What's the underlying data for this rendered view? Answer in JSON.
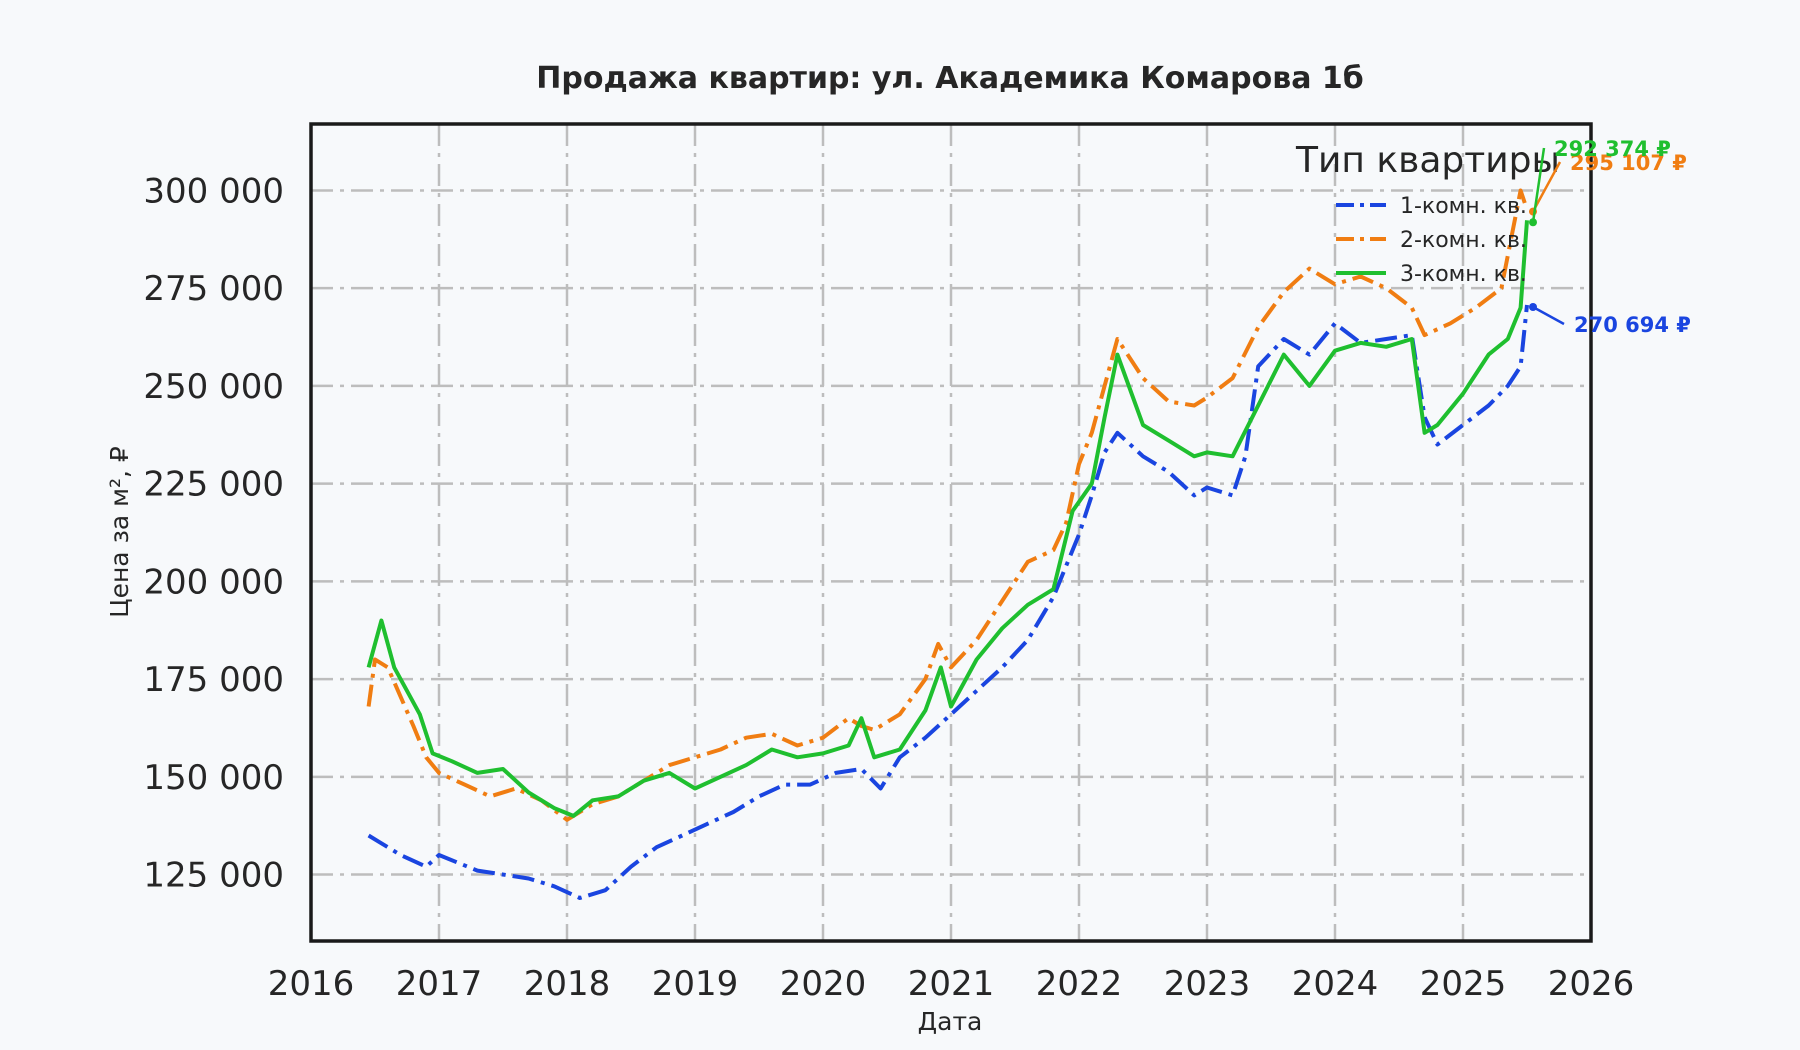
{
  "chart_data": {
    "type": "line",
    "title": "Продажа квартир: ул. Академика Комарова 1б",
    "xlabel": "Дата",
    "ylabel": "Цена за м², ₽",
    "xlim": [
      2016.0,
      2026.0
    ],
    "ylim": [
      108000,
      317000
    ],
    "x_ticks": [
      "2016",
      "2017",
      "2018",
      "2019",
      "2020",
      "2021",
      "2022",
      "2023",
      "2024",
      "2025",
      "2026"
    ],
    "y_ticks": [
      "125 000",
      "150 000",
      "175 000",
      "200 000",
      "225 000",
      "250 000",
      "275 000",
      "300 000"
    ],
    "grid": true,
    "legend": {
      "title": "Тип квартиры",
      "placement": "top-right"
    },
    "series": [
      {
        "name": "1-комн. кв.",
        "color": "#1a45e0",
        "dash": "dashdot",
        "end_label": "270 694 ₽",
        "x": [
          2016.45,
          2016.7,
          2016.9,
          2017.0,
          2017.3,
          2017.7,
          2017.9,
          2018.1,
          2018.3,
          2018.5,
          2018.7,
          2018.9,
          2019.1,
          2019.3,
          2019.5,
          2019.7,
          2019.9,
          2020.1,
          2020.3,
          2020.45,
          2020.6,
          2020.8,
          2021.0,
          2021.2,
          2021.4,
          2021.6,
          2021.8,
          2022.0,
          2022.1,
          2022.2,
          2022.3,
          2022.5,
          2022.7,
          2022.9,
          2023.0,
          2023.2,
          2023.3,
          2023.4,
          2023.6,
          2023.8,
          2024.0,
          2024.2,
          2024.4,
          2024.6,
          2024.7,
          2024.8,
          2025.0,
          2025.2,
          2025.35,
          2025.45,
          2025.5
        ],
        "y": [
          135000,
          130000,
          127000,
          130000,
          126000,
          124000,
          122000,
          119000,
          121000,
          127000,
          132000,
          135000,
          138000,
          141000,
          145000,
          148000,
          148000,
          151000,
          152000,
          147000,
          155000,
          160000,
          166000,
          172000,
          178000,
          185000,
          196000,
          212000,
          222000,
          233000,
          238000,
          232000,
          228000,
          222000,
          224000,
          222000,
          232000,
          255000,
          262000,
          258000,
          266000,
          261000,
          262000,
          263000,
          242000,
          235000,
          240000,
          245000,
          250000,
          255000,
          270694
        ]
      },
      {
        "name": "2-комн. кв.",
        "color": "#f07d12",
        "dash": "dashdot",
        "end_label": "295 107 ₽",
        "x": [
          2016.45,
          2016.5,
          2016.6,
          2016.8,
          2016.9,
          2017.0,
          2017.2,
          2017.4,
          2017.6,
          2017.8,
          2018.0,
          2018.2,
          2018.4,
          2018.6,
          2018.8,
          2019.0,
          2019.2,
          2019.4,
          2019.6,
          2019.8,
          2020.0,
          2020.2,
          2020.3,
          2020.4,
          2020.6,
          2020.8,
          2020.9,
          2021.0,
          2021.2,
          2021.4,
          2021.6,
          2021.8,
          2021.9,
          2022.0,
          2022.1,
          2022.2,
          2022.3,
          2022.5,
          2022.7,
          2022.9,
          2023.0,
          2023.2,
          2023.4,
          2023.6,
          2023.8,
          2024.0,
          2024.2,
          2024.4,
          2024.6,
          2024.7,
          2024.9,
          2025.1,
          2025.3,
          2025.45,
          2025.5
        ],
        "y": [
          168000,
          180000,
          178000,
          163000,
          155000,
          151000,
          148000,
          145000,
          147000,
          144000,
          139000,
          143000,
          145000,
          149000,
          153000,
          155000,
          157000,
          160000,
          161000,
          158000,
          160000,
          165000,
          163000,
          162000,
          166000,
          175000,
          184000,
          178000,
          185000,
          195000,
          205000,
          208000,
          215000,
          230000,
          238000,
          250000,
          262000,
          252000,
          246000,
          245000,
          247000,
          252000,
          265000,
          274000,
          280000,
          276000,
          278000,
          275000,
          270000,
          263000,
          266000,
          270000,
          275000,
          300000,
          295107
        ]
      },
      {
        "name": "3-комн. кв.",
        "color": "#1fbf2f",
        "dash": "solid",
        "end_label": "292 374 ₽",
        "x": [
          2016.45,
          2016.55,
          2016.65,
          2016.75,
          2016.85,
          2016.95,
          2017.1,
          2017.3,
          2017.5,
          2017.7,
          2017.9,
          2018.05,
          2018.2,
          2018.4,
          2018.6,
          2018.8,
          2019.0,
          2019.2,
          2019.4,
          2019.6,
          2019.8,
          2020.0,
          2020.2,
          2020.3,
          2020.4,
          2020.6,
          2020.8,
          2020.92,
          2021.0,
          2021.2,
          2021.4,
          2021.6,
          2021.8,
          2021.95,
          2022.1,
          2022.2,
          2022.3,
          2022.5,
          2022.7,
          2022.9,
          2023.0,
          2023.2,
          2023.4,
          2023.6,
          2023.8,
          2024.0,
          2024.2,
          2024.4,
          2024.6,
          2024.7,
          2024.8,
          2025.0,
          2025.2,
          2025.35,
          2025.45,
          2025.5
        ],
        "y": [
          178000,
          190000,
          178000,
          172000,
          166000,
          156000,
          154000,
          151000,
          152000,
          146000,
          142000,
          140000,
          144000,
          145000,
          149000,
          151000,
          147000,
          150000,
          153000,
          157000,
          155000,
          156000,
          158000,
          165000,
          155000,
          157000,
          167000,
          178000,
          168000,
          180000,
          188000,
          194000,
          198000,
          218000,
          225000,
          242000,
          258000,
          240000,
          236000,
          232000,
          233000,
          232000,
          245000,
          258000,
          250000,
          259000,
          261000,
          260000,
          262000,
          238000,
          240000,
          248000,
          258000,
          262000,
          270000,
          292374
        ]
      }
    ]
  }
}
